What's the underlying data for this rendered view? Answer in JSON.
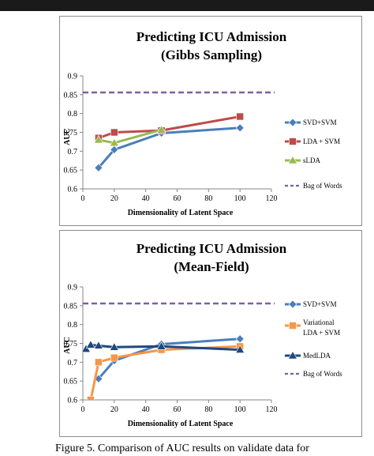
{
  "caption": "Figure 5. Comparison of AUC results on validate data for",
  "chart_data": [
    {
      "type": "line",
      "title": "Predicting ICU Admission",
      "subtitle": "(Gibbs Sampling)",
      "xlabel": "Dimensionality of Latent Space",
      "ylabel": "AUC",
      "xlim": [
        0,
        120
      ],
      "ylim": [
        0.6,
        0.9
      ],
      "xticks": [
        0,
        20,
        40,
        60,
        80,
        100,
        120
      ],
      "yticks": [
        0.6,
        0.65,
        0.7,
        0.75,
        0.8,
        0.85,
        0.9
      ],
      "legend_position": "right",
      "series": [
        {
          "name": "SVD+SVM",
          "color": "#4a7ebb",
          "marker": "diamond",
          "dashed": false,
          "points": [
            [
              10,
              0.656
            ],
            [
              20,
              0.704
            ],
            [
              50,
              0.748
            ],
            [
              100,
              0.762
            ]
          ]
        },
        {
          "name": "LDA + SVM",
          "color": "#be4b48",
          "marker": "square",
          "dashed": false,
          "points": [
            [
              10,
              0.735
            ],
            [
              20,
              0.75
            ],
            [
              50,
              0.755
            ],
            [
              100,
              0.792
            ]
          ]
        },
        {
          "name": "sLDA",
          "color": "#98b954",
          "marker": "triangle",
          "dashed": false,
          "points": [
            [
              10,
              0.73
            ],
            [
              20,
              0.722
            ],
            [
              50,
              0.757
            ]
          ]
        },
        {
          "name": "Bag of Words",
          "color": "#7d60a0",
          "marker": "none",
          "dashed": true,
          "points": [
            [
              0,
              0.856
            ],
            [
              125,
              0.856
            ]
          ]
        }
      ]
    },
    {
      "type": "line",
      "title": "Predicting ICU Admission",
      "subtitle": "(Mean-Field)",
      "xlabel": "Dimensionality of Latent Space",
      "ylabel": "AUC",
      "xlim": [
        0,
        120
      ],
      "ylim": [
        0.6,
        0.9
      ],
      "xticks": [
        0,
        20,
        40,
        60,
        80,
        100,
        120
      ],
      "yticks": [
        0.6,
        0.65,
        0.7,
        0.75,
        0.8,
        0.85,
        0.9
      ],
      "legend_position": "right",
      "series": [
        {
          "name": "SVD+SVM",
          "color": "#4a7ebb",
          "marker": "diamond",
          "dashed": false,
          "points": [
            [
              10,
              0.656
            ],
            [
              20,
              0.704
            ],
            [
              50,
              0.748
            ],
            [
              100,
              0.762
            ]
          ]
        },
        {
          "name": "Variational LDA + SVM",
          "color": "#f79646",
          "marker": "square",
          "dashed": false,
          "points": [
            [
              5,
              0.6
            ],
            [
              10,
              0.7
            ],
            [
              20,
              0.712
            ],
            [
              50,
              0.733
            ],
            [
              100,
              0.742
            ]
          ]
        },
        {
          "name": "MedLDA",
          "color": "#1f497d",
          "marker": "triangle",
          "dashed": false,
          "points": [
            [
              2,
              0.735
            ],
            [
              5,
              0.746
            ],
            [
              10,
              0.744
            ],
            [
              20,
              0.74
            ],
            [
              50,
              0.742
            ],
            [
              100,
              0.733
            ]
          ]
        },
        {
          "name": "Bag of Words",
          "color": "#7d60a0",
          "marker": "none",
          "dashed": true,
          "points": [
            [
              0,
              0.856
            ],
            [
              125,
              0.856
            ]
          ]
        }
      ]
    }
  ]
}
